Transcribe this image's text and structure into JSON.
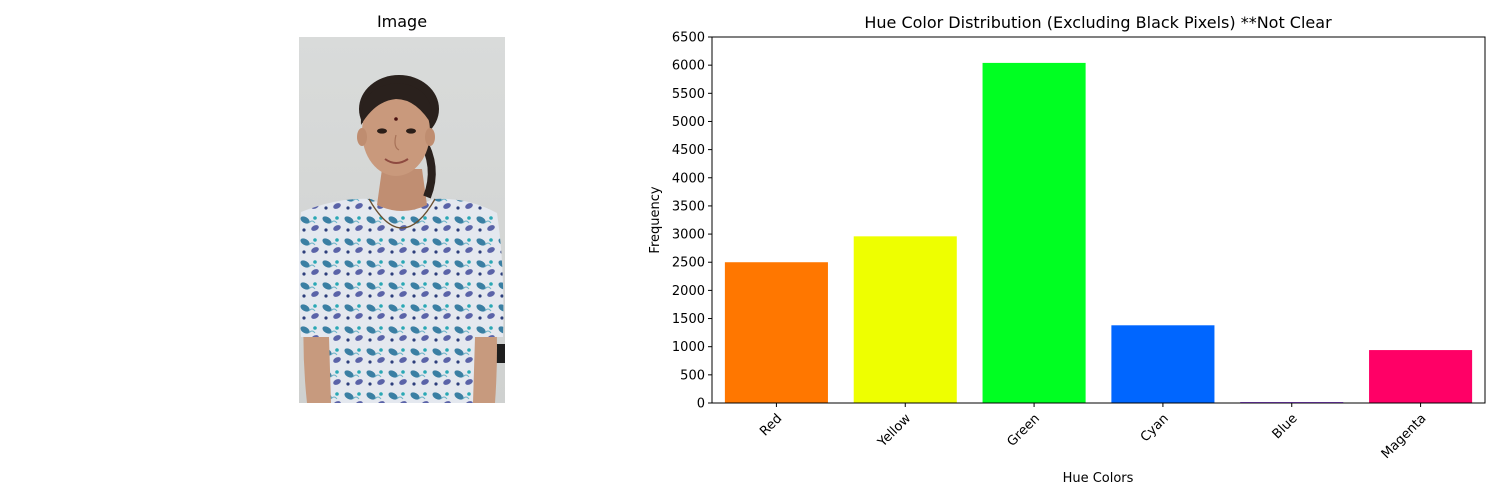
{
  "image_panel": {
    "title": "Image"
  },
  "chart_data": {
    "type": "bar",
    "title": "Hue Color Distribution (Excluding Black Pixels) **Not Clear",
    "xlabel": "Hue Colors",
    "ylabel": "Frequency",
    "categories": [
      "Red",
      "Yellow",
      "Green",
      "Cyan",
      "Blue",
      "Magenta"
    ],
    "values": [
      2500,
      2960,
      6040,
      1380,
      15,
      940
    ],
    "colors": [
      "#ff7700",
      "#eeff00",
      "#00ff22",
      "#0066ff",
      "#7a00ff",
      "#ff0066"
    ],
    "ylim": [
      0,
      6500
    ],
    "yticks": [
      0,
      500,
      1000,
      1500,
      2000,
      2500,
      3000,
      3500,
      4000,
      4500,
      5000,
      5500,
      6000,
      6500
    ],
    "xtick_rotation": 45,
    "grid": false,
    "legend": "none"
  }
}
